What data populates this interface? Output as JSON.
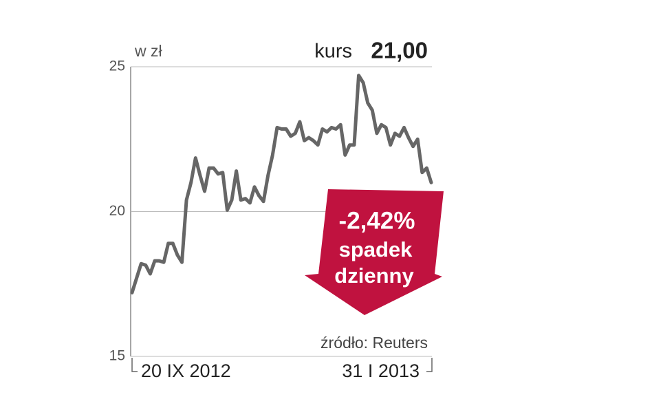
{
  "chart_data": {
    "type": "line",
    "y_label": "w zł",
    "price_caption": "kurs",
    "price": "21,00",
    "callout": [
      "-2,42%",
      "spadek",
      "dzienny"
    ],
    "source": "źródło: Reuters",
    "color": "#666666",
    "callout_color": "#c0123f",
    "ylim": [
      15,
      25
    ],
    "yticks": [
      15,
      20,
      25
    ],
    "grid": true,
    "categories": [
      "20 IX 2012",
      null,
      null,
      null,
      null,
      null,
      null,
      null,
      null,
      null,
      null,
      null,
      null,
      null,
      null,
      null,
      null,
      null,
      null,
      null,
      null,
      null,
      null,
      null,
      null,
      null,
      null,
      null,
      null,
      null,
      null,
      null,
      null,
      null,
      null,
      null,
      null,
      null,
      null,
      null,
      null,
      null,
      null,
      null,
      null,
      null,
      null,
      null,
      null,
      null,
      null,
      null,
      null,
      null,
      null,
      null,
      null,
      null,
      null,
      null,
      null,
      null,
      null,
      null,
      null,
      null,
      "31 I 2013"
    ],
    "values": [
      17.2,
      17.7,
      18.2,
      18.15,
      17.85,
      18.3,
      18.3,
      18.25,
      18.9,
      18.9,
      18.5,
      18.25,
      20.4,
      21.0,
      21.85,
      21.25,
      20.7,
      21.5,
      21.5,
      21.3,
      21.35,
      20.05,
      20.4,
      21.4,
      20.4,
      20.45,
      20.3,
      20.85,
      20.55,
      20.35,
      21.25,
      21.95,
      22.9,
      22.85,
      22.85,
      22.6,
      22.7,
      23.1,
      22.45,
      22.55,
      22.45,
      22.3,
      22.85,
      22.75,
      22.9,
      22.85,
      23.0,
      21.95,
      22.3,
      22.3,
      24.7,
      24.45,
      23.75,
      23.5,
      22.7,
      23.0,
      22.9,
      22.3,
      22.7,
      22.6,
      22.9,
      22.55,
      22.25,
      22.5,
      21.35,
      21.5,
      21.0
    ]
  }
}
